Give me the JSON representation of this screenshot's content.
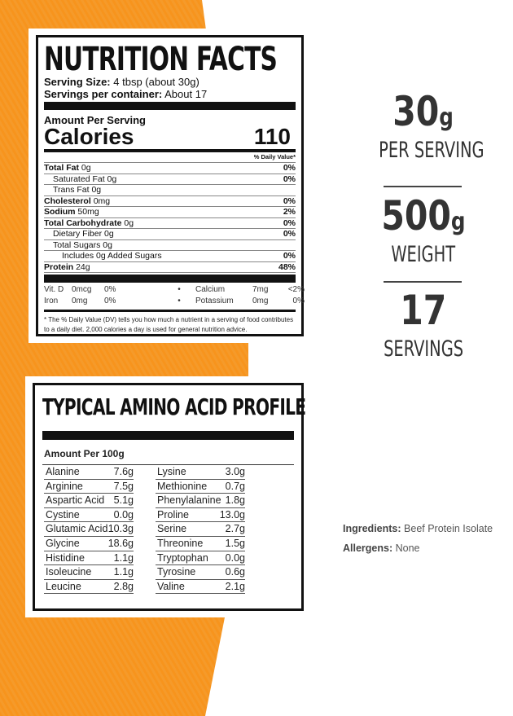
{
  "nutrition": {
    "title": "NUTRITION FACTS",
    "serving_size_label": "Serving Size:",
    "serving_size": "4 tbsp (about 30g)",
    "servings_label": "Servings per container:",
    "servings": "About 17",
    "amount_label": "Amount Per Serving",
    "calories_label": "Calories",
    "calories": "110",
    "dv_header": "% Daily Value*",
    "rows": [
      {
        "name": "Total Fat",
        "amount": "0g",
        "dv": "0%",
        "bold": true,
        "indent": 0
      },
      {
        "name": "Saturated Fat",
        "amount": "0g",
        "dv": "0%",
        "bold": false,
        "indent": 1
      },
      {
        "name": "Trans Fat",
        "amount": "0g",
        "dv": "",
        "bold": false,
        "indent": 1
      },
      {
        "name": "Cholesterol",
        "amount": "0mg",
        "dv": "0%",
        "bold": true,
        "indent": 0
      },
      {
        "name": "Sodium",
        "amount": "50mg",
        "dv": "2%",
        "bold": true,
        "indent": 0
      },
      {
        "name": "Total Carbohydrate",
        "amount": "0g",
        "dv": "0%",
        "bold": true,
        "indent": 0
      },
      {
        "name": "Dietary Fiber",
        "amount": "0g",
        "dv": "0%",
        "bold": false,
        "indent": 1
      },
      {
        "name": "Total Sugars",
        "amount": "0g",
        "dv": "",
        "bold": false,
        "indent": 1
      },
      {
        "name": "Includes 0g Added Sugars",
        "amount": "",
        "dv": "0%",
        "bold": false,
        "indent": 2
      },
      {
        "name": "Protein",
        "amount": "24g",
        "dv": "48%",
        "bold": true,
        "indent": 0
      }
    ],
    "minerals": [
      {
        "a": "Vit. D",
        "b": "0mcg",
        "c": "0%",
        "d": "Calcium",
        "e": "7mg",
        "f": "<2%"
      },
      {
        "a": "Iron",
        "b": "0mg",
        "c": "0%",
        "d": "Potassium",
        "e": "0mg",
        "f": "0%"
      }
    ],
    "footnote": "* The % Daily Value (DV) tells you how much a nutrient in a serving of food contributes to a daily diet. 2,000 calories a day is used for general nutrition advice."
  },
  "amino": {
    "title": "TYPICAL AMINO ACID PROFILE",
    "amount_label": "Amount Per 100g",
    "left": [
      [
        "Alanine",
        "7.6g"
      ],
      [
        "Arginine",
        "7.5g"
      ],
      [
        "Aspartic Acid",
        "5.1g"
      ],
      [
        "Cystine",
        "0.0g"
      ],
      [
        "Glutamic Acid",
        "10.3g"
      ],
      [
        "Glycine",
        "18.6g"
      ],
      [
        "Histidine",
        "1.1g"
      ],
      [
        "Isoleucine",
        "1.1g"
      ],
      [
        "Leucine",
        "2.8g"
      ]
    ],
    "right": [
      [
        "Lysine",
        "3.0g"
      ],
      [
        "Methionine",
        "0.7g"
      ],
      [
        "Phenylalanine",
        "1.8g"
      ],
      [
        "Proline",
        "13.0g"
      ],
      [
        "Serine",
        "2.7g"
      ],
      [
        "Threonine",
        "1.5g"
      ],
      [
        "Tryptophan",
        "0.0g"
      ],
      [
        "Tyrosine",
        "0.6g"
      ],
      [
        "Valine",
        "2.1g"
      ]
    ]
  },
  "stats": [
    {
      "value": "30",
      "unit": "g",
      "label": "PER SERVING"
    },
    {
      "value": "500",
      "unit": "g",
      "label": "WEIGHT"
    },
    {
      "value": "17",
      "unit": "",
      "label": "SERVINGS"
    }
  ],
  "ingredients": {
    "label": "Ingredients:",
    "value": "Beef Protein Isolate"
  },
  "allergens": {
    "label": "Allergens:",
    "value": "None"
  },
  "colors": {
    "accent": "#f7941d",
    "text": "#333333"
  }
}
